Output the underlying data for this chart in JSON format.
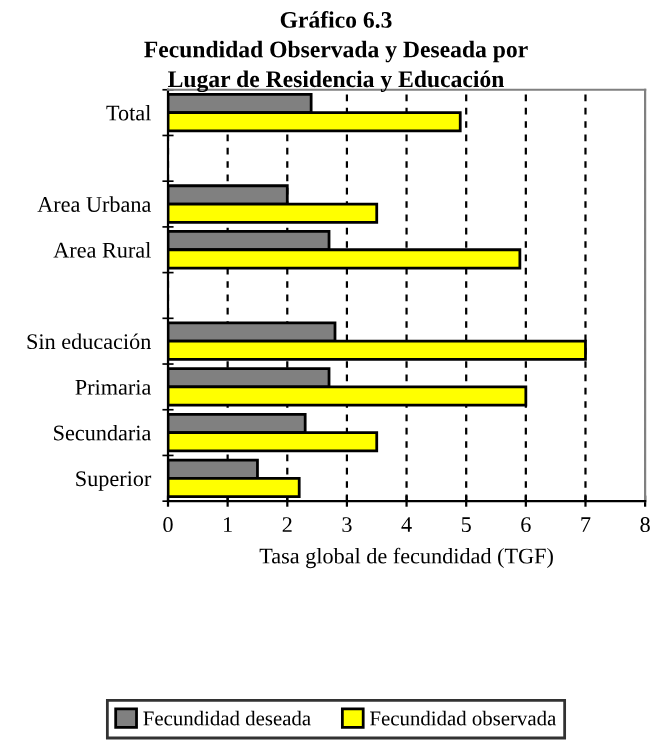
{
  "chart_data": {
    "type": "bar",
    "orientation": "horizontal",
    "title": "Gráfico 6.3\nFecundidad Observada y Deseada por\nLugar de Residencia y Educación",
    "xlabel": "Tasa global de fecundidad (TGF)",
    "categories": [
      "Total",
      null,
      "Area Urbana",
      "Area Rural",
      null,
      "Sin educación",
      "Primaria",
      "Secundaria",
      "Superior"
    ],
    "series": [
      {
        "name": "Fecundidad deseada",
        "color": "#808080",
        "values": [
          2.4,
          null,
          2.0,
          2.7,
          null,
          2.8,
          2.7,
          2.3,
          1.5
        ]
      },
      {
        "name": "Fecundidad observada",
        "color": "#ffff00",
        "values": [
          4.9,
          null,
          3.5,
          5.9,
          null,
          7.0,
          6.0,
          3.5,
          2.2
        ]
      }
    ],
    "xlim": [
      0,
      8
    ],
    "xticks": [
      0,
      1,
      2,
      3,
      4,
      5,
      6,
      7,
      8
    ],
    "grid": "x",
    "legend": "bottom"
  }
}
